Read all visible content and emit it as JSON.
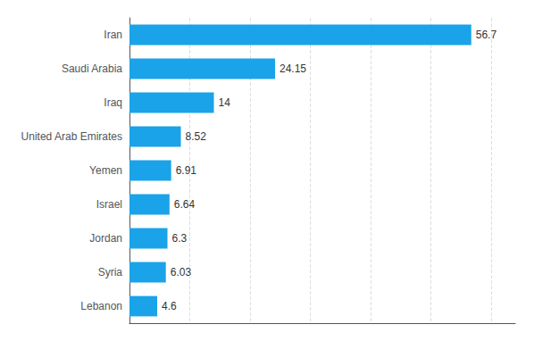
{
  "chart_data": {
    "type": "bar",
    "orientation": "horizontal",
    "categories": [
      "Lebanon",
      "Syria",
      "Jordan",
      "Israel",
      "Yemen",
      "United Arab Emirates",
      "Iraq",
      "Saudi Arabia",
      "Iran"
    ],
    "values": [
      4.6,
      6.03,
      6.3,
      6.64,
      6.91,
      8.52,
      14,
      24.15,
      56.7
    ],
    "color": "#1aa3e8",
    "xlim": [
      0,
      64
    ],
    "xticks": [
      0,
      10,
      20,
      30,
      40,
      50,
      60
    ],
    "grid": true,
    "data_labels": true,
    "tick_labels": "y"
  }
}
